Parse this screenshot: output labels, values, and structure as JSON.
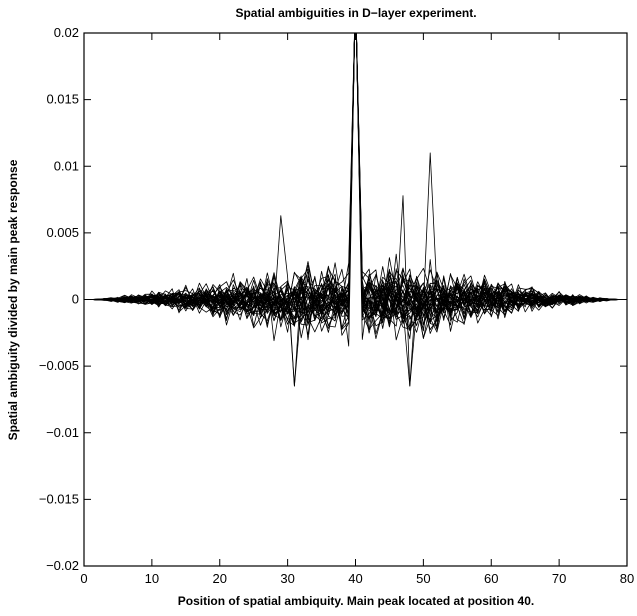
{
  "chart_data": {
    "type": "line",
    "title": "Spatial  ambiguities in D−layer experiment.",
    "xlabel": "Position of spatial ambiquity. Main peak located at position 40.",
    "ylabel": "Spatial ambiguity divided by main peak response",
    "xlim": [
      0,
      80
    ],
    "ylim": [
      -0.02,
      0.02
    ],
    "x_ticks": [
      0,
      10,
      20,
      30,
      40,
      50,
      60,
      70,
      80
    ],
    "y_ticks": [
      -0.02,
      -0.015,
      -0.01,
      -0.005,
      0,
      0.005,
      0.01,
      0.015,
      0.02
    ],
    "x_tick_labels": [
      "0",
      "10",
      "20",
      "30",
      "40",
      "50",
      "60",
      "70",
      "80"
    ],
    "y_tick_labels": [
      "−0.02",
      "−0.015",
      "−0.01",
      "−0.005",
      "0",
      "0.005",
      "0.01",
      "0.015",
      "0.02"
    ],
    "grid": false,
    "legend": "none",
    "line_color": "#000000",
    "series_count": 40,
    "x_range": [
      1,
      79
    ],
    "main_peak_position": 40,
    "main_peak_clipped": true,
    "envelope_notes": "Ambiguity amplitude grows from ~0 at positions 1 and 79 to about ±0.004 near positions 30 and 50; extreme values about 0.0063 near x=29, about 0.011 near x=51, about −0.0065 near x=31 and x=48.",
    "key_points": [
      {
        "x": 29,
        "y": 0.0063
      },
      {
        "x": 31,
        "y": -0.0065
      },
      {
        "x": 39,
        "y": -0.0035
      },
      {
        "x": 41,
        "y": -0.003
      },
      {
        "x": 47,
        "y": 0.0078
      },
      {
        "x": 48,
        "y": -0.0065
      },
      {
        "x": 51,
        "y": 0.011
      }
    ]
  }
}
